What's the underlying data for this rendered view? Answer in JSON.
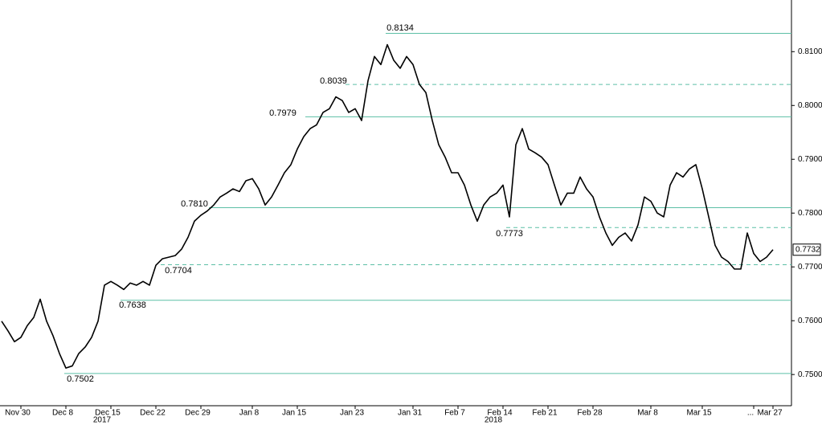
{
  "chart_data": {
    "type": "line",
    "categories": [
      null,
      null,
      null,
      "Nov 30",
      null,
      null,
      null,
      null,
      null,
      null,
      "Dec 8",
      null,
      null,
      null,
      null,
      null,
      null,
      "Dec 15",
      null,
      null,
      null,
      null,
      null,
      null,
      "Dec 22",
      null,
      null,
      null,
      null,
      null,
      null,
      "Dec 29",
      null,
      null,
      null,
      null,
      null,
      null,
      null,
      "Jan 8",
      null,
      null,
      null,
      null,
      null,
      null,
      "Jan 15",
      null,
      null,
      null,
      null,
      null,
      null,
      null,
      null,
      "Jan 23",
      null,
      null,
      null,
      null,
      null,
      null,
      null,
      null,
      "Jan 31",
      null,
      null,
      null,
      null,
      null,
      null,
      "Feb 7",
      null,
      null,
      null,
      null,
      null,
      null,
      "Feb 14",
      null,
      null,
      null,
      null,
      null,
      null,
      "Feb 21",
      null,
      null,
      null,
      null,
      null,
      null,
      "Feb 28",
      null,
      null,
      null,
      null,
      null,
      null,
      null,
      null,
      "Mar 8",
      null,
      null,
      null,
      null,
      null,
      null,
      null,
      "Mar 15",
      null,
      null,
      null,
      null,
      null,
      null,
      null,
      "...",
      null,
      null,
      "Mar 27"
    ],
    "values": [
      0.7599,
      0.7581,
      0.7561,
      0.7569,
      0.7591,
      0.7606,
      0.764,
      0.7599,
      0.7572,
      0.7539,
      0.7512,
      0.7516,
      0.7539,
      0.7551,
      0.7569,
      0.7599,
      0.7666,
      0.7673,
      0.7666,
      0.7658,
      0.767,
      0.7666,
      0.7673,
      0.7666,
      0.7703,
      0.7715,
      0.7718,
      0.7721,
      0.7733,
      0.7755,
      0.7785,
      0.7796,
      0.7804,
      0.7815,
      0.783,
      0.7837,
      0.7845,
      0.784,
      0.786,
      0.7864,
      0.7845,
      0.7815,
      0.783,
      0.7852,
      0.7875,
      0.789,
      0.7919,
      0.7942,
      0.7957,
      0.7964,
      0.7987,
      0.7994,
      0.8016,
      0.8009,
      0.7987,
      0.7994,
      0.7972,
      0.8046,
      0.8091,
      0.8076,
      0.8113,
      0.8084,
      0.8069,
      0.8091,
      0.8076,
      0.8039,
      0.8024,
      0.7972,
      0.7927,
      0.7904,
      0.7875,
      0.7875,
      0.7852,
      0.7815,
      0.7785,
      0.7815,
      0.783,
      0.7837,
      0.7852,
      0.7793,
      0.7927,
      0.7957,
      0.7919,
      0.7912,
      0.7904,
      0.789,
      0.7852,
      0.7815,
      0.7837,
      0.7837,
      0.7867,
      0.7845,
      0.783,
      0.7793,
      0.7763,
      0.774,
      0.7755,
      0.7763,
      0.7748,
      0.7778,
      0.783,
      0.7822,
      0.78,
      0.7793,
      0.7852,
      0.7875,
      0.7867,
      0.7882,
      0.789,
      0.7845,
      0.7793,
      0.774,
      0.7718,
      0.771,
      0.7696,
      0.7696,
      0.7763,
      0.7725,
      0.771,
      0.7718,
      0.7732
    ],
    "color": "#000000",
    "year_labels": [
      "2017",
      "2018"
    ],
    "ylim": [
      0.7442,
      0.8196
    ],
    "yticks": [
      {
        "value": 0.75,
        "label": "0.7500"
      },
      {
        "value": 0.76,
        "label": "0.7600"
      },
      {
        "value": 0.77,
        "label": "0.7700"
      },
      {
        "value": 0.78,
        "label": "0.7800"
      },
      {
        "value": 0.79,
        "label": "0.7900"
      },
      {
        "value": 0.8,
        "label": "0.8000"
      },
      {
        "value": 0.81,
        "label": "0.8100"
      }
    ],
    "levels": [
      {
        "value": 0.8134,
        "label": "0.8134",
        "style": "solid"
      },
      {
        "value": 0.8039,
        "label": "0.8039",
        "style": "dashed"
      },
      {
        "value": 0.7979,
        "label": "0.7979",
        "style": "solid"
      },
      {
        "value": 0.781,
        "label": "0.7810",
        "style": "solid"
      },
      {
        "value": 0.7773,
        "label": "0.7773",
        "style": "dashed"
      },
      {
        "value": 0.7704,
        "label": "0.7704",
        "style": "dashed"
      },
      {
        "value": 0.7638,
        "label": "0.7638",
        "style": "solid"
      },
      {
        "value": 0.7502,
        "label": "0.7502",
        "style": "solid"
      }
    ],
    "level_color": "#5cbfa6",
    "last_value": {
      "value": 0.7732,
      "label": "0.7732"
    }
  }
}
